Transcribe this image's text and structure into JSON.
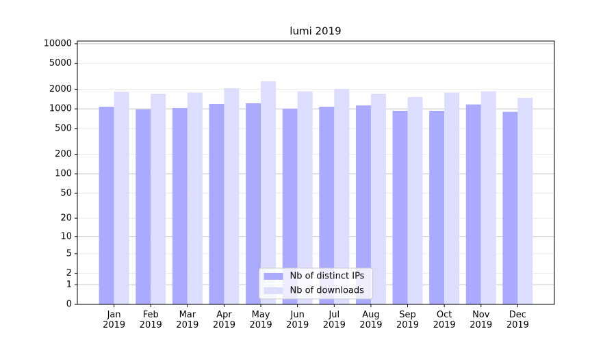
{
  "chart_data": {
    "type": "bar",
    "title": "lumi 2019",
    "categories": [
      "Jan\n2019",
      "Feb\n2019",
      "Mar\n2019",
      "Apr\n2019",
      "May\n2019",
      "Jun\n2019",
      "Jul\n2019",
      "Aug\n2019",
      "Sep\n2019",
      "Oct\n2019",
      "Nov\n2019",
      "Dec\n2019"
    ],
    "series": [
      {
        "name": "Nb of distinct IPs",
        "color": "#aaaaff",
        "values": [
          1080,
          980,
          1030,
          1190,
          1220,
          1000,
          1080,
          1130,
          935,
          935,
          1170,
          900
        ]
      },
      {
        "name": "Nb of downloads",
        "color": "#ddddff",
        "values": [
          1840,
          1710,
          1780,
          2080,
          2650,
          1860,
          2030,
          1710,
          1520,
          1780,
          1860,
          1480
        ]
      }
    ],
    "yscale": "log1p",
    "ylim": [
      0,
      11000
    ],
    "yticks": [
      0,
      1,
      2,
      5,
      10,
      20,
      50,
      100,
      200,
      500,
      1000,
      2000,
      5000,
      10000
    ],
    "grid": true,
    "legend": "lower center"
  }
}
